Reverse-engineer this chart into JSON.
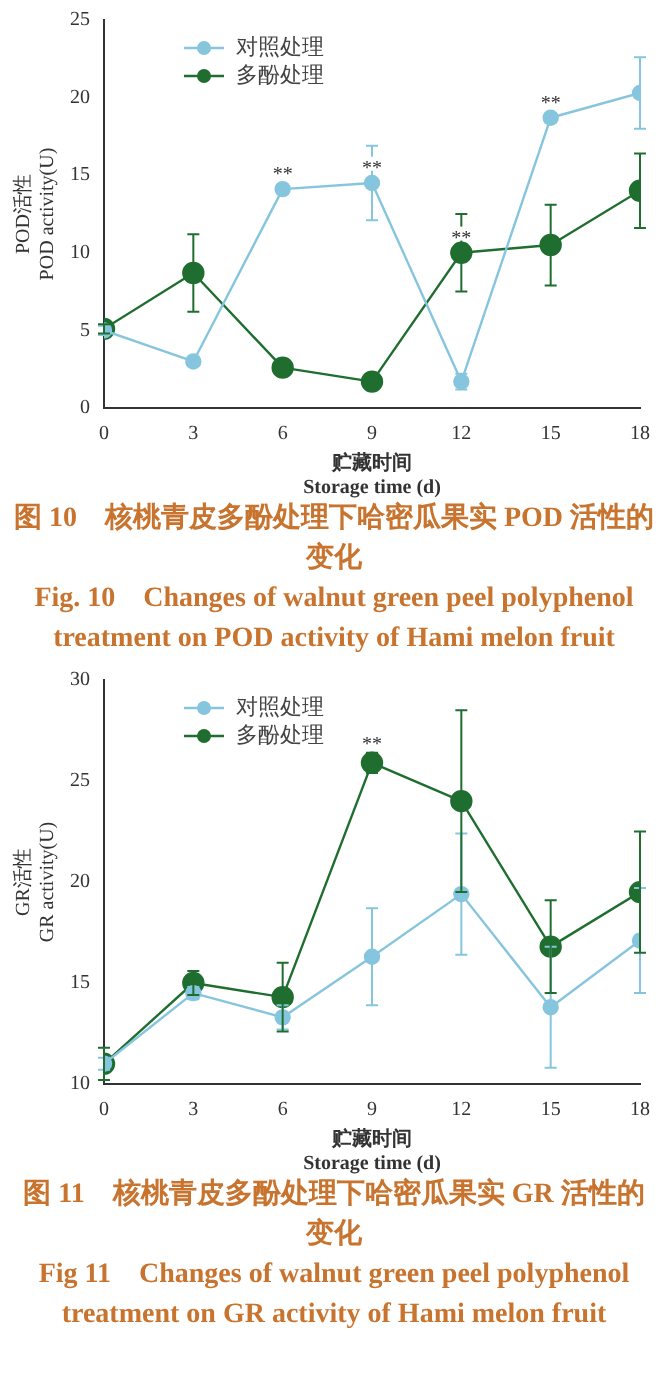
{
  "chart_data": [
    {
      "type": "line",
      "xlabel": "贮藏时间\nStorage time (d)",
      "ylabel": "POD活性\nPOD activity(U)",
      "x": [
        0,
        3,
        6,
        9,
        12,
        15,
        18
      ],
      "xlim": [
        0,
        18
      ],
      "xticks": [
        0,
        3,
        6,
        9,
        12,
        15,
        18
      ],
      "ylim": [
        0,
        25
      ],
      "yticks": [
        0,
        5,
        10,
        15,
        20,
        25
      ],
      "grid": false,
      "legend": "top left",
      "marker": "circle",
      "line_style": "solid",
      "series": [
        {
          "name": "对照处理",
          "color": "#86c5de",
          "values": [
            5.0,
            3.0,
            14.1,
            14.5,
            1.7,
            18.7,
            20.3
          ],
          "errors": [
            0.3,
            0.3,
            0.3,
            2.4,
            0.5,
            0.3,
            2.3
          ]
        },
        {
          "name": "多酚处理",
          "color": "#1f6e30",
          "values": [
            5.1,
            8.7,
            2.6,
            1.7,
            10.0,
            10.5,
            14.0
          ],
          "errors": [
            0.3,
            2.5,
            null,
            null,
            2.5,
            2.6,
            2.4
          ]
        }
      ],
      "annotations": [
        {
          "text": "**",
          "x": 6,
          "y": 14.5
        },
        {
          "text": "**",
          "x": 9,
          "y": 14.9
        },
        {
          "text": "**",
          "x": 12,
          "y": 10.4
        },
        {
          "text": "**",
          "x": 15,
          "y": 19.1
        },
        "图 10　核桃青皮多酚处理下哈密瓜果实 POD 活性的变化",
        "Fig. 10　Changes of walnut green peel polyphenol treatment on POD activity of Hami melon fruit"
      ]
    },
    {
      "type": "line",
      "xlabel": "贮藏时间\nStorage time (d)",
      "ylabel": "GR活性\nGR activity(U)",
      "x": [
        0,
        3,
        6,
        9,
        12,
        15,
        18
      ],
      "xlim": [
        0,
        18
      ],
      "xticks": [
        0,
        3,
        6,
        9,
        12,
        15,
        18
      ],
      "ylim": [
        10,
        30
      ],
      "yticks": [
        10,
        15,
        20,
        25,
        30
      ],
      "grid": false,
      "legend": "top left",
      "marker": "circle",
      "line_style": "solid",
      "series": [
        {
          "name": "对照处理",
          "color": "#86c5de",
          "values": [
            11.0,
            14.5,
            13.3,
            16.3,
            19.4,
            13.8,
            17.1
          ],
          "errors": [
            0.3,
            0.3,
            0.6,
            2.4,
            3.0,
            3.0,
            2.6
          ]
        },
        {
          "name": "多酚处理",
          "color": "#1f6e30",
          "values": [
            11.0,
            15.0,
            14.3,
            25.9,
            24.0,
            16.8,
            19.5
          ],
          "errors": [
            0.8,
            0.6,
            1.7,
            0.5,
            4.5,
            2.3,
            3.0
          ]
        }
      ],
      "annotations": [
        {
          "text": "**",
          "x": 9,
          "y": 26.4
        },
        "图 11　核桃青皮多酚处理下哈密瓜果实 GR 活性的变化",
        "Fig 11　Changes of walnut green peel polyphenol treatment on GR activity of Hami melon fruit"
      ]
    }
  ]
}
